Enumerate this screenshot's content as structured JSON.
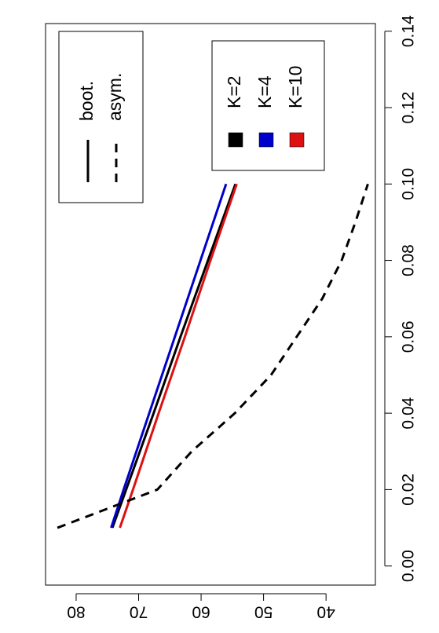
{
  "chart_data": {
    "type": "line",
    "x": [
      0.01,
      0.02,
      0.04,
      0.06,
      0.08,
      0.1
    ],
    "series": [
      {
        "name": "K=2",
        "color": "#000000",
        "values": [
          74.2,
          72.0,
          67.6,
          63.3,
          58.9,
          54.5
        ]
      },
      {
        "name": "K=4",
        "color": "#0000cc",
        "values": [
          74.4,
          72.4,
          68.3,
          64.2,
          60.1,
          56.0
        ]
      },
      {
        "name": "K=10",
        "color": "#dd1111",
        "values": [
          73.0,
          70.9,
          66.8,
          62.6,
          58.5,
          54.3
        ]
      }
    ],
    "asym": {
      "color": "#000000",
      "x": [
        0.01,
        0.02,
        0.03,
        0.04,
        0.05,
        0.06,
        0.07,
        0.08,
        0.09,
        0.1
      ],
      "values": [
        83.0,
        67.0,
        61.5,
        54.6,
        48.8,
        44.7,
        40.6,
        37.5,
        35.3,
        33.3
      ]
    },
    "linetype_legend": [
      {
        "label": "boot.",
        "dash": "solid"
      },
      {
        "label": "asym.",
        "dash": "dashed"
      }
    ],
    "xlim": [
      -0.005,
      0.142
    ],
    "ylim": [
      32.1,
      84.9
    ],
    "xticks": [
      {
        "value": 0,
        "label": "0.00"
      },
      {
        "value": 0.02,
        "label": "0.02"
      },
      {
        "value": 0.04,
        "label": "0.04"
      },
      {
        "value": 0.06,
        "label": "0.06"
      },
      {
        "value": 0.08,
        "label": "0.08"
      },
      {
        "value": 0.1,
        "label": "0.10"
      },
      {
        "value": 0.12,
        "label": "0.12"
      },
      {
        "value": 0.14,
        "label": "0.14"
      }
    ],
    "yticks": [
      40,
      50,
      60,
      70,
      80
    ],
    "rotation": -90
  }
}
